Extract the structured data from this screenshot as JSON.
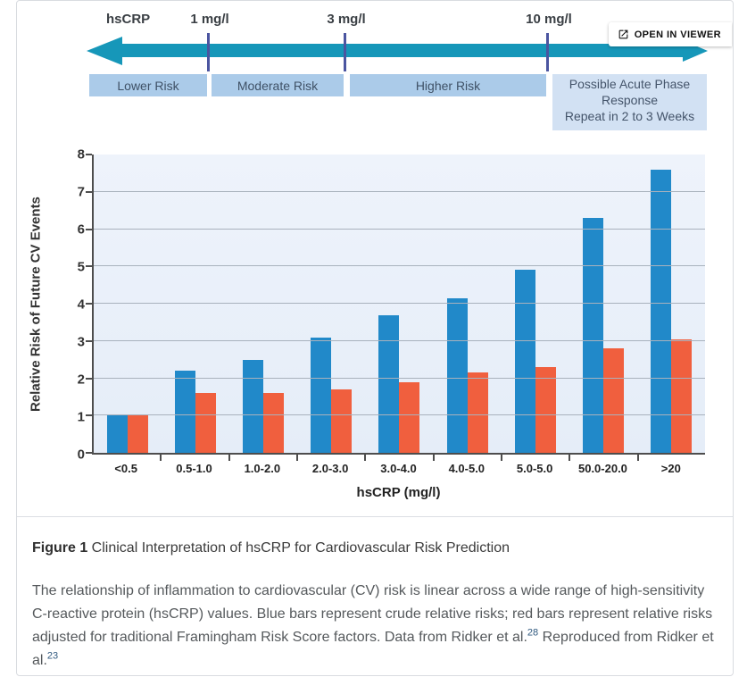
{
  "viewer_button": {
    "label": "OPEN IN VIEWER"
  },
  "risk_scale": {
    "axis_label": "hsCRP",
    "thresholds": [
      "1 mg/l",
      "3 mg/l",
      "10 mg/l"
    ],
    "zones": [
      {
        "label": "Lower Risk"
      },
      {
        "label": "Moderate Risk"
      },
      {
        "label": "Higher Risk"
      }
    ],
    "acute_zone": {
      "line1": "Possible Acute Phase Response",
      "line2": "Repeat in 2 to 3 Weeks"
    },
    "colors": {
      "arrow": "#1697b9",
      "threshold_tick": "#4b55a0",
      "zone_bg": "#abcbe9",
      "acute_bg": "#d2e1f3"
    }
  },
  "chart_data": {
    "type": "bar",
    "title": "",
    "categories": [
      "<0.5",
      "0.5-1.0",
      "1.0-2.0",
      "2.0-3.0",
      "3.0-4.0",
      "4.0-5.0",
      "5.0-5.0",
      "50.0-20.0",
      ">20"
    ],
    "series": [
      {
        "name": "Blue bars (crude relative risk)",
        "color": "#2189c9",
        "values": [
          1.0,
          2.2,
          2.5,
          3.1,
          3.7,
          4.15,
          4.9,
          6.3,
          7.6
        ]
      },
      {
        "name": "Red bars (relative risk adjusted for Framingham Risk Score factors)",
        "color": "#f05f3e",
        "values": [
          1.0,
          1.6,
          1.6,
          1.7,
          1.9,
          2.15,
          2.3,
          2.8,
          3.05
        ]
      }
    ],
    "xlabel": "hsCRP (mg/l)",
    "ylabel": "Relative Risk of Future CV Events",
    "ylim": [
      0,
      8
    ],
    "yticks": [
      0,
      1,
      2,
      3,
      4,
      5,
      6,
      7,
      8
    ],
    "grid": true,
    "legend_position": "none"
  },
  "caption": {
    "label": "Figure 1",
    "title": " Clinical Interpretation of hsCRP for Cardiovascular Risk Prediction",
    "body_1": "The relationship of inflammation to cardiovascular (CV) risk is linear across a wide range of high-sensitivity C-reactive protein (hsCRP) values. Blue bars represent crude relative risks; red bars represent relative risks adjusted for traditional Framingham Risk Score factors. Data from Ridker et al.",
    "cite_1": "28",
    "body_2": " Reproduced from Ridker et al.",
    "cite_2": "23"
  }
}
